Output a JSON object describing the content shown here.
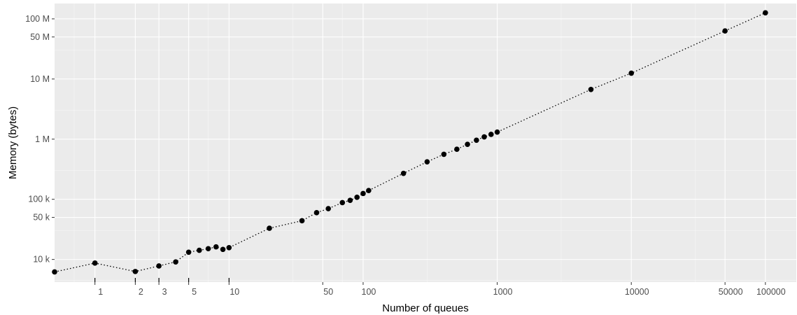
{
  "chart_data": {
    "type": "scatter",
    "xlabel": "Number of queues",
    "ylabel": "Memory (bytes)",
    "x_scale": "log",
    "y_scale": "log",
    "xlim": [
      0.5,
      170000
    ],
    "ylim": [
      4200,
      180000000
    ],
    "grid": true,
    "line_style": "dotted",
    "x_ticks": [
      {
        "value": 1,
        "label": "1"
      },
      {
        "value": 2,
        "label": "2"
      },
      {
        "value": 3,
        "label": "3"
      },
      {
        "value": 5,
        "label": "5"
      },
      {
        "value": 10,
        "label": "10"
      },
      {
        "value": 50,
        "label": "50"
      },
      {
        "value": 100,
        "label": "100"
      },
      {
        "value": 1000,
        "label": "1000"
      },
      {
        "value": 10000,
        "label": "10000"
      },
      {
        "value": 50000,
        "label": "50000"
      },
      {
        "value": 100000,
        "label": "100000"
      }
    ],
    "y_ticks": [
      {
        "value": 10000,
        "label": "10 k"
      },
      {
        "value": 50000,
        "label": "50 k"
      },
      {
        "value": 100000,
        "label": "100 k"
      },
      {
        "value": 1000000,
        "label": "1 M"
      },
      {
        "value": 10000000,
        "label": "10 M"
      },
      {
        "value": 50000000,
        "label": "50 M"
      },
      {
        "value": 100000000,
        "label": "100 M"
      }
    ],
    "x_minor_gridlines": [
      0.7,
      3,
      7,
      30,
      70,
      300,
      3000,
      30000
    ],
    "y_minor_gridlines": [
      4500,
      30000,
      300000,
      3000000,
      30000000
    ],
    "x_rug_ticks": [
      1,
      2,
      3,
      5,
      10
    ],
    "x": [
      0.5,
      1,
      2,
      3,
      4,
      5,
      6,
      7,
      8,
      9,
      10,
      20,
      35,
      45,
      55,
      70,
      80,
      90,
      100,
      110,
      200,
      300,
      400,
      500,
      600,
      700,
      800,
      900,
      1000,
      5000,
      10000,
      50000,
      100000
    ],
    "y": [
      6200,
      8700,
      6300,
      7800,
      9100,
      13200,
      14200,
      15100,
      16200,
      14700,
      15700,
      33000,
      44000,
      60000,
      70000,
      88000,
      96000,
      108000,
      125000,
      140000,
      270000,
      420000,
      560000,
      680000,
      820000,
      960000,
      1090000,
      1200000,
      1310000,
      6700000,
      12500000,
      63000000,
      126000000
    ]
  }
}
